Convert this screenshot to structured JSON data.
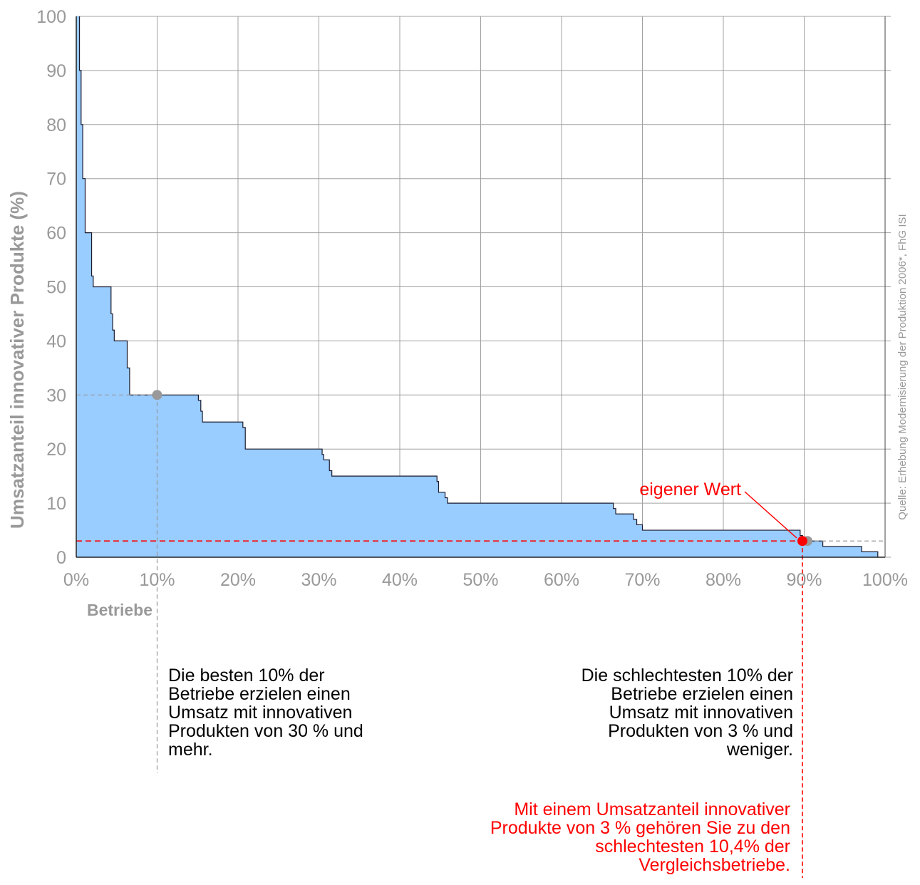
{
  "chart_data": {
    "type": "area",
    "ylabel": "Umsatzanteil innovativer Produkte (%)",
    "xlabel": "Betriebe",
    "source": "Quelle: Erhebung Modernisierung der Produktion 2006*, FhG ISI",
    "xlim": [
      0,
      100
    ],
    "ylim": [
      0,
      100
    ],
    "x_ticks": [
      "0%",
      "10%",
      "20%",
      "30%",
      "40%",
      "50%",
      "60%",
      "70%",
      "80%",
      "90%",
      "100%"
    ],
    "y_ticks": [
      "0",
      "10",
      "20",
      "30",
      "40",
      "50",
      "60",
      "70",
      "80",
      "90",
      "100"
    ],
    "grid": true,
    "fill_color": "#99ccff",
    "line_color": "#1a1a2e",
    "series": [
      {
        "x": [
          0.4,
          0.6,
          0.8,
          1.1,
          1.9,
          2.1,
          4.3,
          4.5,
          4.7,
          6.3,
          6.6,
          6.8,
          15.1,
          15.4,
          15.6,
          20.6,
          20.9,
          30.4,
          30.6,
          31.3,
          31.6,
          44.6,
          44.8,
          45.6,
          45.9,
          66.4,
          66.7,
          68.9,
          69.3,
          70.0,
          89.5,
          89.8,
          92.3,
          97.1,
          99.1
        ],
        "y": [
          100,
          90,
          80,
          70,
          60,
          52,
          50,
          45,
          42,
          40,
          35,
          30,
          30,
          29,
          27,
          25,
          24,
          20,
          19,
          18,
          16,
          15,
          14,
          12,
          11,
          10,
          9,
          8,
          7,
          6,
          5,
          4,
          3,
          2,
          1
        ]
      }
    ],
    "reference_points": [
      {
        "label": "",
        "x": 10,
        "y": 30,
        "color": "#999999"
      },
      {
        "label": "",
        "x": 90.4,
        "y": 3,
        "color": "#999999"
      },
      {
        "label": "eigener Wert",
        "x": 89.6,
        "y": 3,
        "color": "#ff0000"
      }
    ],
    "own_value_label": "eigener Wert",
    "annotations": {
      "best": "Die besten 10% der\nBetriebe erzielen einen\nUmsatz mit innovativen\nProdukten von 30 % und\nmehr.",
      "worst": "Die schlechtesten 10% der\nBetriebe erzielen einen\nUmsatz mit innovativen\nProdukten von 3 % und\nweniger.",
      "own": "Mit einem Umsatzanteil innovativer\nProdukte von 3 % gehören Sie zu den\nschlechtesten 10,4% der\nVergleichsbetriebe."
    },
    "colors": {
      "axis_text": "#999999",
      "highlight": "#ff0000",
      "grid": "#a0a0a0"
    }
  }
}
